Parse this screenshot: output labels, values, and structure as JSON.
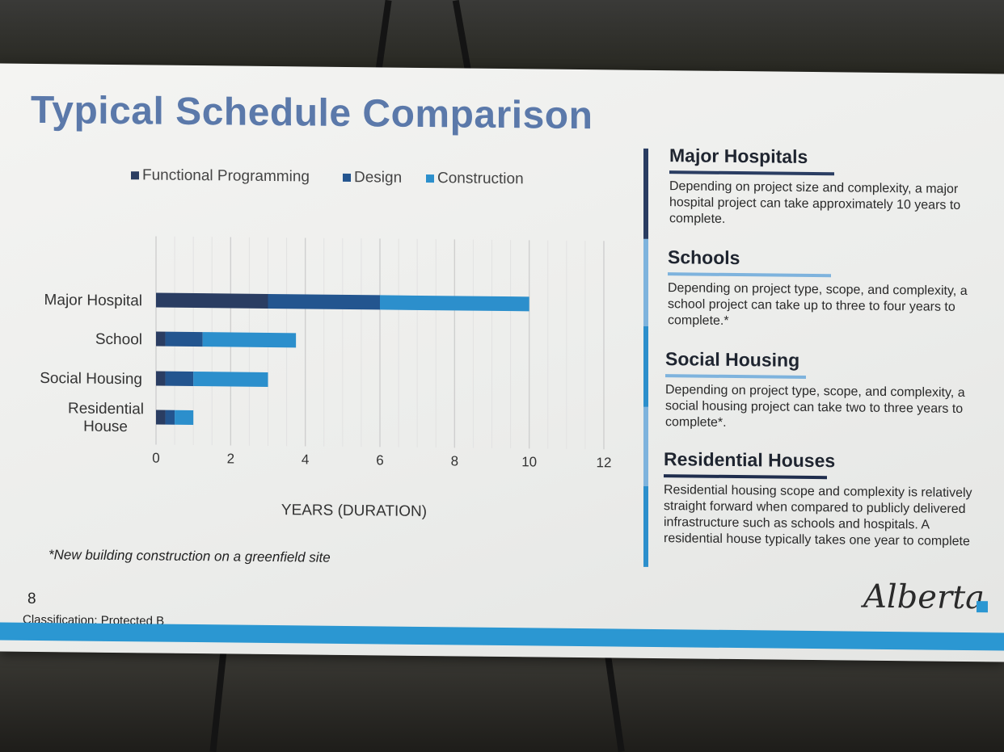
{
  "slide": {
    "title": "Typical Schedule Comparison",
    "footnote": "*New building construction on a greenfield site",
    "page_number": "8",
    "classification": "Classification: Protected B",
    "logo_text": "Alberta"
  },
  "colors": {
    "functional": "#2a3d62",
    "design": "#23558f",
    "construction": "#2c8fcc",
    "band": "#2b97d2"
  },
  "chart_data": {
    "type": "bar",
    "orientation": "horizontal",
    "stacked": true,
    "title": "",
    "xlabel": "YEARS (DURATION)",
    "ylabel": "",
    "xlim": [
      0,
      12
    ],
    "xticks": [
      "0",
      "2",
      "4",
      "6",
      "8",
      "10",
      "12"
    ],
    "categories": [
      "Major Hospital",
      "School",
      "Social Housing",
      "Residential House"
    ],
    "series": [
      {
        "name": "Functional Programming",
        "values": [
          3,
          0.25,
          0.25,
          0.25
        ]
      },
      {
        "name": "Design",
        "values": [
          3,
          1,
          0.75,
          0.25
        ]
      },
      {
        "name": "Construction",
        "values": [
          4,
          2.5,
          2,
          0.5
        ]
      }
    ],
    "legend": "top",
    "grid": true
  },
  "info_panel": [
    {
      "heading": "Major Hospitals",
      "text": "Depending on project size and complexity, a major hospital project can take approximately 10 years to complete."
    },
    {
      "heading": "Schools",
      "text": "Depending on project type, scope, and complexity, a school project can take up to three to four years to complete.*"
    },
    {
      "heading": "Social Housing",
      "text": "Depending on project type, scope, and complexity, a social housing project can take two to three years to complete*."
    },
    {
      "heading": "Residential Houses",
      "text": "Residential housing scope and complexity is relatively straight forward when compared to publicly delivered infrastructure such as schools and hospitals. A residential house typically takes one year to complete"
    }
  ]
}
